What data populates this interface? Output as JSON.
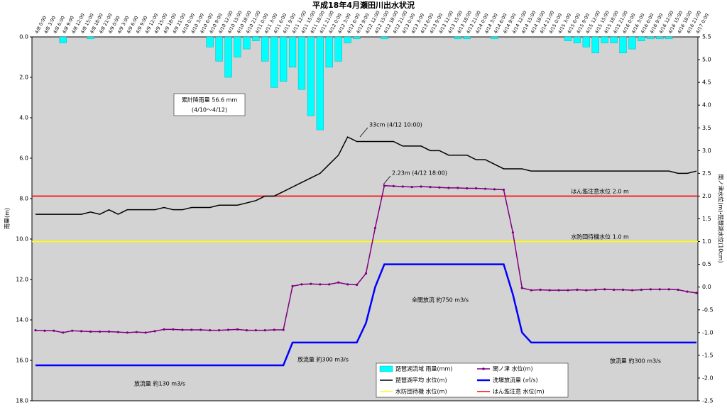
{
  "chart_data": {
    "type": "combo",
    "title": "平成18年4月瀬田川出水状況",
    "ylabel": "雨量(m)",
    "y2label": "関ノ津水位(m)・琵琶湖水位(10cm)",
    "categories": [
      "4/8 0:00",
      "4/8 3:00",
      "4/8 6:00",
      "4/8 9:00",
      "4/8 12:00",
      "4/8 15:00",
      "4/8 18:00",
      "4/8 21:00",
      "4/9 0:00",
      "4/9 3:00",
      "4/9 6:00",
      "4/9 9:00",
      "4/9 12:00",
      "4/9 15:00",
      "4/9 18:00",
      "4/9 21:00",
      "4/10 0:00",
      "4/10 3:00",
      "4/10 6:00",
      "4/10 9:00",
      "4/10 12:00",
      "4/10 15:00",
      "4/10 18:00",
      "4/10 21:00",
      "4/11 0:00",
      "4/11 3:00",
      "4/11 6:00",
      "4/11 9:00",
      "4/11 12:00",
      "4/11 15:00",
      "4/11 18:00",
      "4/11 21:00",
      "4/12 0:00",
      "4/12 3:00",
      "4/12 6:00",
      "4/12 9:00",
      "4/12 12:00",
      "4/12 15:00",
      "4/12 18:00",
      "4/12 21:00",
      "4/13 0:00",
      "4/13 3:00",
      "4/13 6:00",
      "4/13 9:00",
      "4/13 12:00",
      "4/13 15:00",
      "4/13 18:00",
      "4/13 21:00",
      "4/14 0:00",
      "4/14 3:00",
      "4/14 6:00",
      "4/14 9:00",
      "4/14 12:00",
      "4/14 15:00",
      "4/14 18:00",
      "4/14 21:00",
      "4/15 0:00",
      "4/15 3:00",
      "4/15 6:00",
      "4/15 9:00",
      "4/15 12:00",
      "4/15 15:00",
      "4/15 18:00",
      "4/15 21:00",
      "4/16 0:00",
      "4/16 3:00",
      "4/16 6:00",
      "4/16 9:00",
      "4/16 12:00",
      "4/16 15:00",
      "4/16 18:00",
      "4/16 21:00",
      "4/17 0:00"
    ],
    "ylim": [
      0,
      18
    ],
    "y_reversed": true,
    "yticks": [
      {
        "value": 0,
        "label": "0.0"
      },
      {
        "value": 2,
        "label": "2.0"
      },
      {
        "value": 4,
        "label": "4.0"
      },
      {
        "value": 6,
        "label": "6.0"
      },
      {
        "value": 8,
        "label": "8.0"
      },
      {
        "value": 10,
        "label": "10.0"
      },
      {
        "value": 12,
        "label": "12.0"
      },
      {
        "value": 14,
        "label": "14.0"
      },
      {
        "value": 16,
        "label": "16.0"
      },
      {
        "value": 18,
        "label": "18.0"
      }
    ],
    "y2lim": [
      -2.5,
      5.5
    ],
    "y2ticks": [
      5.5,
      {
        "value": 5,
        "label": "5.0"
      },
      4.5,
      {
        "value": 4,
        "label": "4.0"
      },
      3.5,
      {
        "value": 3,
        "label": "3.0"
      },
      2.5,
      {
        "value": 2,
        "label": "2.0"
      },
      1.5,
      {
        "value": 1,
        "label": "1.0"
      },
      0.5,
      {
        "value": 0,
        "label": "0.0"
      },
      -0.5,
      {
        "value": -1,
        "label": "-1.0"
      },
      -1.5,
      {
        "value": -2,
        "label": "-2.0"
      },
      -2.5
    ],
    "grid": false,
    "series": [
      {
        "name": "琵琶湖流域 雨量(mm)",
        "type": "bar",
        "axis": "y",
        "color": "#00ffff",
        "values": [
          0,
          0,
          0,
          0.3,
          0,
          0,
          0.1,
          0,
          0,
          0,
          0,
          0,
          0,
          0,
          0,
          0,
          0,
          0,
          0,
          0.5,
          1.2,
          2.0,
          1.0,
          0.6,
          0.2,
          1.2,
          2.5,
          2.2,
          1.5,
          2.6,
          3.9,
          4.6,
          1.5,
          1.2,
          0.3,
          0.1,
          0,
          0,
          0.1,
          0,
          0,
          0,
          0,
          0,
          0,
          0,
          0.1,
          0.1,
          0,
          0,
          0.1,
          0,
          0,
          0,
          0,
          0,
          0,
          0,
          0.2,
          0.3,
          0.5,
          0.8,
          0.3,
          0.3,
          0.8,
          0.6,
          0.2,
          0.1,
          0.1,
          0.1,
          0,
          0,
          0
        ]
      },
      {
        "name": "関ノ津 水位(m)",
        "type": "line",
        "axis": "y2",
        "color": "#800080",
        "marker": true,
        "values": [
          -0.95,
          -0.96,
          -0.96,
          -1.0,
          -0.96,
          -0.97,
          -0.98,
          -0.98,
          -0.98,
          -0.99,
          -1.0,
          -0.99,
          -1.0,
          -0.97,
          -0.93,
          -0.93,
          -0.94,
          -0.94,
          -0.94,
          -0.95,
          -0.95,
          -0.94,
          -0.93,
          -0.95,
          -0.95,
          -0.95,
          -0.94,
          -0.94,
          0.02,
          0.06,
          0.07,
          0.06,
          0.06,
          0.1,
          0.06,
          0.05,
          0.3,
          1.3,
          2.23,
          2.22,
          2.21,
          2.2,
          2.21,
          2.2,
          2.19,
          2.18,
          2.18,
          2.17,
          2.17,
          2.16,
          2.15,
          2.14,
          1.2,
          -0.02,
          -0.07,
          -0.06,
          -0.07,
          -0.07,
          -0.07,
          -0.06,
          -0.07,
          -0.06,
          -0.05,
          -0.06,
          -0.06,
          -0.07,
          -0.06,
          -0.05,
          -0.05,
          -0.05,
          -0.06,
          -0.1,
          -0.13
        ]
      },
      {
        "name": "琵琶湖平均 水位(m)",
        "type": "line",
        "axis": "y2",
        "color": "#000000",
        "values": [
          1.6,
          1.6,
          1.6,
          1.6,
          1.6,
          1.6,
          1.65,
          1.6,
          1.7,
          1.6,
          1.7,
          1.7,
          1.7,
          1.7,
          1.75,
          1.7,
          1.7,
          1.75,
          1.75,
          1.75,
          1.8,
          1.8,
          1.8,
          1.85,
          1.9,
          2.0,
          2.0,
          2.1,
          2.2,
          2.3,
          2.4,
          2.5,
          2.7,
          2.9,
          3.3,
          3.2,
          3.2,
          3.2,
          3.2,
          3.2,
          3.1,
          3.1,
          3.1,
          3.0,
          3.0,
          2.9,
          2.9,
          2.9,
          2.8,
          2.8,
          2.7,
          2.6,
          2.6,
          2.6,
          2.55,
          2.55,
          2.55,
          2.55,
          2.55,
          2.55,
          2.55,
          2.55,
          2.55,
          2.55,
          2.55,
          2.55,
          2.55,
          2.55,
          2.55,
          2.55,
          2.5,
          2.5,
          2.55
        ]
      },
      {
        "name": "洗堰放流量 (㎥/s)",
        "type": "line",
        "axis": "y2",
        "color": "#0000ff",
        "width": 2.5,
        "values": [
          -1.72,
          -1.72,
          -1.72,
          -1.72,
          -1.72,
          -1.72,
          -1.72,
          -1.72,
          -1.72,
          -1.72,
          -1.72,
          -1.72,
          -1.72,
          -1.72,
          -1.72,
          -1.72,
          -1.72,
          -1.72,
          -1.72,
          -1.72,
          -1.72,
          -1.72,
          -1.72,
          -1.72,
          -1.72,
          -1.72,
          -1.72,
          -1.72,
          -1.22,
          -1.22,
          -1.22,
          -1.22,
          -1.22,
          -1.22,
          -1.22,
          -1.22,
          -0.79,
          0.0,
          0.5,
          0.5,
          0.5,
          0.5,
          0.5,
          0.5,
          0.5,
          0.5,
          0.5,
          0.5,
          0.5,
          0.5,
          0.5,
          0.5,
          -0.16,
          -1.0,
          -1.22,
          -1.22,
          -1.22,
          -1.22,
          -1.22,
          -1.22,
          -1.22,
          -1.22,
          -1.22,
          -1.22,
          -1.22,
          -1.22,
          -1.22,
          -1.22,
          -1.22,
          -1.22,
          -1.22,
          -1.22,
          -1.22
        ]
      },
      {
        "name": "水防団待機 水位(m)",
        "type": "hline",
        "axis": "y2",
        "color": "#ffff00",
        "value": 1.0
      },
      {
        "name": "はん濫注意 水位(m)",
        "type": "hline",
        "axis": "y2",
        "color": "#ff0000",
        "value": 2.0
      }
    ],
    "annotations": [
      "累計降雨量 56.6 mm",
      "(4/10～4/12)",
      "33cm (4/12 10:00)",
      "2.23m (4/12 18:00)",
      "はん濫注意水位 2.0 m",
      "水防団待機水位 1.0 m",
      "全開放流 約750 m3/s",
      "放流量 約300 m3/s",
      "放流量 約300 m3/s",
      "放流量 約130 m3/s"
    ]
  }
}
